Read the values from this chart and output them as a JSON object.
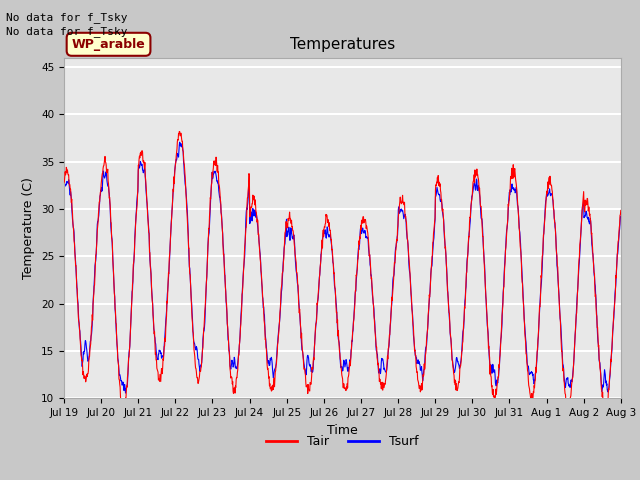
{
  "title": "Temperatures",
  "xlabel": "Time",
  "ylabel": "Temperature (C)",
  "ylim": [
    10,
    46
  ],
  "yticks": [
    10,
    15,
    20,
    25,
    30,
    35,
    40,
    45
  ],
  "text_lines": [
    "No data for f_Tsky",
    "No data for f_Tsky"
  ],
  "annotation": "WP_arable",
  "legend_entries": [
    "Tair",
    "Tsurf"
  ],
  "legend_colors": [
    "red",
    "blue"
  ],
  "num_days": 15,
  "fig_bg_color": "#c8c8c8",
  "plot_bg_color": "#e8e8e8",
  "grid_color": "#ffffff",
  "tick_labels": [
    "Jul 19",
    "Jul 20",
    "Jul 21",
    "Jul 22",
    "Jul 23",
    "Jul 24",
    "Jul 25",
    "Jul 26",
    "Jul 27",
    "Jul 28",
    "Jul 29",
    "Jul 30",
    "Jul 31",
    "Aug 1",
    "Aug 2",
    "Aug 3"
  ],
  "wp_box_facecolor": "#ffffcc",
  "wp_box_edgecolor": "#8b0000",
  "wp_text_color": "#8b0000"
}
